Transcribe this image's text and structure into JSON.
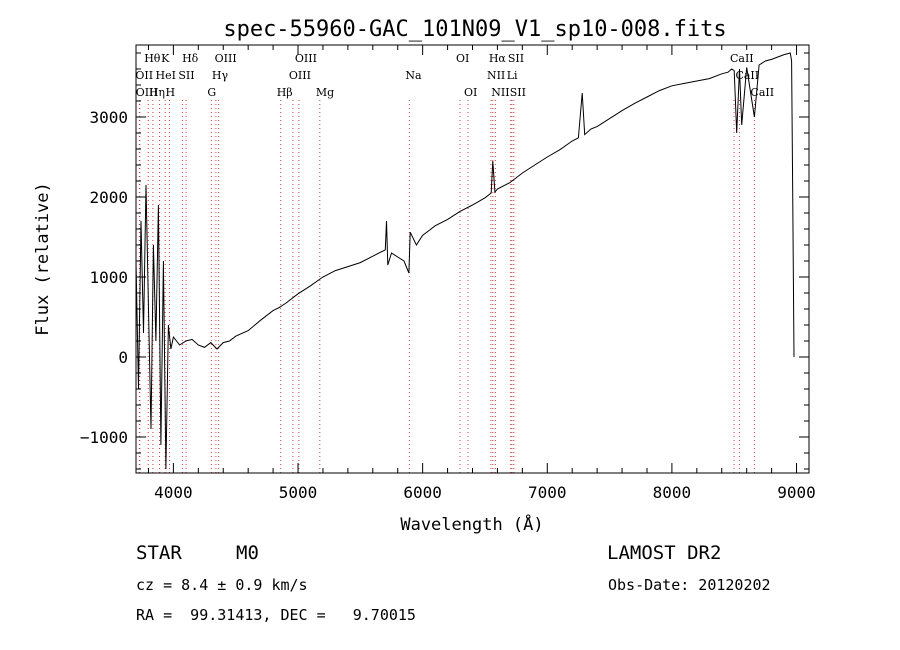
{
  "chart_data": {
    "type": "line",
    "title": "spec-55960-GAC_101N09_V1_sp10-008.fits",
    "xlabel": "Wavelength (Å)",
    "ylabel": "Flux (relative)",
    "xlim": [
      3700,
      9100
    ],
    "ylim": [
      -1450,
      3900
    ],
    "xticks": [
      4000,
      5000,
      6000,
      7000,
      8000,
      9000
    ],
    "yticks": [
      -1000,
      0,
      1000,
      2000,
      3000
    ],
    "grid": false,
    "colors": {
      "line": "#000000",
      "spectral_lines": "#d93b3b"
    },
    "series": [
      {
        "x": [
          3700,
          3720,
          3740,
          3760,
          3780,
          3800,
          3820,
          3840,
          3860,
          3880,
          3900,
          3920,
          3940,
          3960,
          3980,
          4000,
          4050,
          4100,
          4150,
          4200,
          4250,
          4300,
          4350,
          4400,
          4450,
          4500,
          4600,
          4700,
          4800,
          4850,
          4900,
          5000,
          5100,
          5200,
          5300,
          5400,
          5500,
          5600,
          5700,
          5710,
          5720,
          5750,
          5800,
          5850,
          5890,
          5900,
          5950,
          6000,
          6050,
          6100,
          6200,
          6300,
          6400,
          6500,
          6550,
          6563,
          6580,
          6600,
          6700,
          6800,
          6900,
          7000,
          7100,
          7200,
          7250,
          7280,
          7300,
          7350,
          7400,
          7500,
          7600,
          7700,
          7800,
          7900,
          8000,
          8100,
          8200,
          8300,
          8400,
          8450,
          8480,
          8500,
          8520,
          8542,
          8560,
          8600,
          8662,
          8700,
          8750,
          8800,
          8850,
          8900,
          8950,
          8960,
          8970,
          8980
        ],
        "y": [
          1200,
          -400,
          1700,
          300,
          2150,
          600,
          -900,
          1400,
          200,
          1900,
          -1100,
          1200,
          -1400,
          400,
          100,
          250,
          150,
          200,
          220,
          150,
          120,
          180,
          100,
          180,
          200,
          260,
          330,
          460,
          580,
          620,
          670,
          790,
          890,
          1000,
          1080,
          1130,
          1180,
          1260,
          1340,
          1700,
          1150,
          1300,
          1250,
          1200,
          1050,
          1560,
          1400,
          1520,
          1580,
          1640,
          1720,
          1820,
          1900,
          1990,
          2050,
          2450,
          2060,
          2100,
          2180,
          2300,
          2400,
          2500,
          2590,
          2700,
          2740,
          3300,
          2780,
          2850,
          2880,
          2980,
          3080,
          3170,
          3250,
          3330,
          3390,
          3420,
          3450,
          3480,
          3540,
          3560,
          3600,
          3580,
          2800,
          3600,
          2900,
          3620,
          3000,
          3650,
          3700,
          3720,
          3750,
          3780,
          3800,
          3700,
          1900,
          0
        ]
      }
    ],
    "spectral_lines": [
      {
        "name": "Hθ",
        "x": 3798,
        "row": 0
      },
      {
        "name": "OII",
        "x": 3727,
        "row": 1
      },
      {
        "name": "OIII",
        "x": 3730,
        "row": 2
      },
      {
        "name": "K",
        "x": 3934,
        "row": 0
      },
      {
        "name": "HeI",
        "x": 3889,
        "row": 1
      },
      {
        "name": "Hη",
        "x": 3835,
        "row": 2
      },
      {
        "name": "Hδ",
        "x": 4102,
        "row": 0
      },
      {
        "name": "SII",
        "x": 4072,
        "row": 1
      },
      {
        "name": "H",
        "x": 3969,
        "row": 2
      },
      {
        "name": "OIII",
        "x": 4363,
        "row": 0
      },
      {
        "name": "Hγ",
        "x": 4341,
        "row": 1
      },
      {
        "name": "G",
        "x": 4305,
        "row": 2
      },
      {
        "name": "OIII",
        "x": 5007,
        "row": 0
      },
      {
        "name": "OIII",
        "x": 4959,
        "row": 1
      },
      {
        "name": "Hβ",
        "x": 4861,
        "row": 2
      },
      {
        "name": "Mg",
        "x": 5175,
        "row": 2
      },
      {
        "name": "Na",
        "x": 5893,
        "row": 1
      },
      {
        "name": "OI",
        "x": 6300,
        "row": 0
      },
      {
        "name": "OI",
        "x": 6364,
        "row": 2
      },
      {
        "name": "Hα",
        "x": 6563,
        "row": 0
      },
      {
        "name": "SII",
        "x": 6716,
        "row": 0
      },
      {
        "name": "NII",
        "x": 6548,
        "row": 1
      },
      {
        "name": "Li",
        "x": 6707,
        "row": 1
      },
      {
        "name": "NII",
        "x": 6583,
        "row": 2
      },
      {
        "name": "SII",
        "x": 6731,
        "row": 2
      },
      {
        "name": "CaII",
        "x": 8498,
        "row": 0
      },
      {
        "name": "CaII",
        "x": 8542,
        "row": 1
      },
      {
        "name": "CaII",
        "x": 8662,
        "row": 2
      }
    ]
  },
  "info": {
    "object_class": "STAR",
    "subclass": "M0",
    "survey": "LAMOST DR2",
    "cz": "cz = 8.4 ± 0.9 km/s",
    "obs_date": "Obs-Date: 20120202",
    "coords": "RA =  99.31413, DEC =   9.70015"
  }
}
